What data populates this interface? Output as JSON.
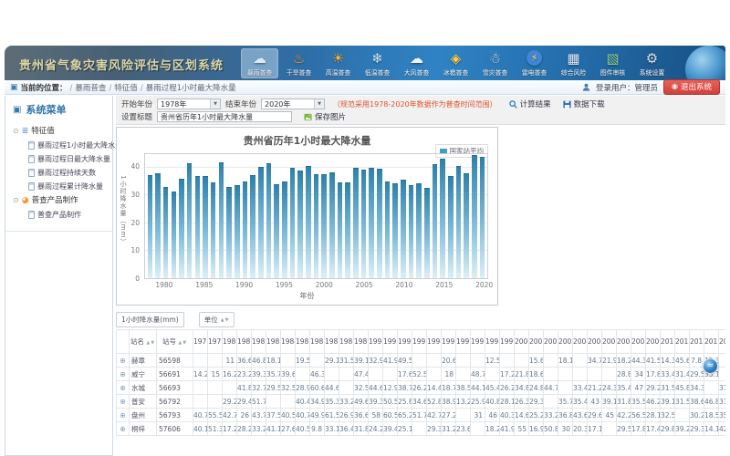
{
  "header": {
    "title": "贵州省气象灾害风险评估与区划系统",
    "nav_items": [
      {
        "key": "rainstorm",
        "label": "暴雨普查",
        "icon": "rain-cloud",
        "active": true
      },
      {
        "key": "drought",
        "label": "干旱普查",
        "icon": "heat-waves",
        "active": false
      },
      {
        "key": "high-temp",
        "label": "高温普查",
        "icon": "sun",
        "active": false
      },
      {
        "key": "low-temp",
        "label": "低温普查",
        "icon": "snowflake",
        "active": false
      },
      {
        "key": "wind",
        "label": "大风普查",
        "icon": "wind-cloud",
        "active": false
      },
      {
        "key": "hail",
        "label": "冰雹普查",
        "icon": "hail-shield",
        "active": false
      },
      {
        "key": "snow",
        "label": "雪灾普查",
        "icon": "snow-cloud",
        "active": false
      },
      {
        "key": "lightning",
        "label": "雷电普查",
        "icon": "lightning",
        "active": false
      },
      {
        "key": "composite-risk",
        "label": "综合风险",
        "icon": "calculator",
        "active": false
      },
      {
        "key": "map-review",
        "label": "图件审核",
        "icon": "map",
        "active": false
      },
      {
        "key": "settings",
        "label": "系统设置",
        "icon": "wrench",
        "active": false
      }
    ]
  },
  "breadcrumb": {
    "prefix": "当前的位置：",
    "items": [
      "暴雨普查",
      "特征值",
      "暴雨过程1小时最大降水量"
    ]
  },
  "user": {
    "label": "登录用户：管理员",
    "logout_label": "退出系统"
  },
  "sidebar": {
    "title": "系统菜单",
    "groups": [
      {
        "label": "特征值",
        "icon": "list",
        "children": [
          {
            "label": "暴雨过程1小时最大降水量"
          },
          {
            "label": "暴雨过程日最大降水量"
          },
          {
            "label": "暴雨过程持续天数"
          },
          {
            "label": "暴雨过程累计降水量"
          }
        ]
      },
      {
        "label": "普查产品制作",
        "icon": "pie",
        "children": [
          {
            "label": "普查产品制作"
          }
        ]
      }
    ]
  },
  "query": {
    "start_label": "开始年份",
    "start_value": "1978年",
    "end_label": "结束年份",
    "end_value": "2020年",
    "hint": "（规范采用1978-2020年数据作为普查时间范围）",
    "calc_label": "计算结果",
    "download_label": "数据下载",
    "title_label": "设置标题",
    "title_value": "贵州省历年1小时最大降水量",
    "save_image_label": "保存图片"
  },
  "chart_data": {
    "type": "bar",
    "title": "贵州省历年1小时最大降水量",
    "legend": [
      "国家站平均"
    ],
    "xlabel": "年份",
    "ylabel": "1小时降水量（mm）",
    "ylim": [
      0,
      45
    ],
    "yticks": [
      0,
      10,
      20,
      30,
      40
    ],
    "xticks": [
      1980,
      1985,
      1990,
      1995,
      2000,
      2005,
      2010,
      2015,
      2020
    ],
    "x": [
      1978,
      1979,
      1980,
      1981,
      1982,
      1983,
      1984,
      1985,
      1986,
      1987,
      1988,
      1989,
      1990,
      1991,
      1992,
      1993,
      1994,
      1995,
      1996,
      1997,
      1998,
      1999,
      2000,
      2001,
      2002,
      2003,
      2004,
      2005,
      2006,
      2007,
      2008,
      2009,
      2010,
      2011,
      2012,
      2013,
      2014,
      2015,
      2016,
      2017,
      2018,
      2019,
      2020
    ],
    "values": [
      37.5,
      38.2,
      33.2,
      31.5,
      36.0,
      41.7,
      37.0,
      37.0,
      34.8,
      41.9,
      33.2,
      33.6,
      35.1,
      37.5,
      40.5,
      41.6,
      34.2,
      35.2,
      40.0,
      38.9,
      40.8,
      37.6,
      37.7,
      38.5,
      34.6,
      34.6,
      40.1,
      39.5,
      40.1,
      39.8,
      35.1,
      34.4,
      35.8,
      33.9,
      34.4,
      32.9,
      41.5,
      43.2,
      37.2,
      40.6,
      38.1,
      44.8,
      43.9
    ]
  },
  "table": {
    "filter_box": "1小时降水量(mm)",
    "unit_filter": "单位",
    "col_name": "站名",
    "col_id": "站号",
    "years": [
      1978,
      1979,
      1980,
      1981,
      1982,
      1983,
      1984,
      1985,
      1986,
      1987,
      1988,
      1989,
      1990,
      1991,
      1992,
      1993,
      1994,
      1995,
      1996,
      1997,
      1998,
      1999,
      2000,
      2001,
      2002,
      2003,
      2004,
      2005,
      2006,
      2007,
      2008,
      2009,
      2010,
      2011,
      2012,
      2013,
      2014
    ],
    "rows": [
      {
        "name": "赫章",
        "id": "56598",
        "values": [
          "",
          "",
          "11",
          "36.6",
          "46.8",
          "18.1",
          "",
          "19.5",
          "",
          "29.1",
          "31.5",
          "39.1",
          "32.9",
          "41.9",
          "49.5",
          "",
          "",
          "20.6",
          "",
          "",
          "12.5",
          "",
          "",
          "15.6",
          "",
          "18.1",
          "",
          "34.7",
          "21.9",
          "18.2",
          "44.3",
          "41.5",
          "14.3",
          "45.6",
          "7.8",
          "15.3",
          ""
        ]
      },
      {
        "name": "威宁",
        "id": "56691",
        "values": [
          "14.2",
          "15",
          "16.2",
          "23.2",
          "39.3",
          "35.7",
          "39.6",
          "",
          "46.3",
          "",
          "",
          "47.4",
          "",
          "",
          "17.6",
          "52.5",
          "",
          "18",
          "",
          "48.7",
          "",
          "17.2",
          "21.8",
          "18.6",
          "",
          "",
          "",
          "",
          "",
          "28.8",
          "34",
          "17.8",
          "33.4",
          "31.4",
          "29.5",
          "35.1",
          ""
        ]
      },
      {
        "name": "水城",
        "id": "56693",
        "values": [
          "",
          "",
          "",
          "41.8",
          "32.7",
          "29.5",
          "32.5",
          "28.9",
          "60.6",
          "44.6",
          "",
          "32.5",
          "44.6",
          "12.9",
          "38.7",
          "26.2",
          "14.4",
          "18.7",
          "38.5",
          "44.1",
          "45.4",
          "26.2",
          "34.8",
          "24.8",
          "44.7",
          "",
          "33.4",
          "21.2",
          "24.3",
          "35.4",
          "47",
          "29.2",
          "31.5",
          "45.8",
          "34.3",
          "",
          "31.9"
        ]
      },
      {
        "name": "普安",
        "id": "56792",
        "values": [
          "",
          "",
          "29.2",
          "29.4",
          "51.7",
          "",
          "",
          "40.4",
          "34.9",
          "35.3",
          "33.2",
          "49.6",
          "39.3",
          "50.5",
          "25.8",
          "34.6",
          "52.8",
          "38.9",
          "13.2",
          "25.9",
          "40.8",
          "28.1",
          "26.3",
          "29.3",
          "",
          "35.7",
          "35.4",
          "43",
          "39.1",
          "31.8",
          "35.5",
          "46.2",
          "39.1",
          "31.5",
          "38.6",
          "46.8",
          "31.1"
        ]
      },
      {
        "name": "盘州",
        "id": "56793",
        "values": [
          "40.7",
          "55.5",
          "42.7",
          "26",
          "43.7",
          "37.5",
          "40.5",
          "40.7",
          "49.9",
          "61.5",
          "26.9",
          "36.6",
          "58",
          "60.5",
          "65.2",
          "51.7",
          "42.7",
          "27.2",
          "",
          "31",
          "46",
          "40.3",
          "14.6",
          "25.2",
          "33.2",
          "36.8",
          "43.6",
          "29.6",
          "45",
          "42.2",
          "56.5",
          "28.1",
          "32.5",
          "",
          "30.2",
          "18.5",
          "35.8"
        ]
      },
      {
        "name": "桐梓",
        "id": "57606",
        "values": [
          "40.1",
          "51.3",
          "17.2",
          "28.2",
          "33.2",
          "41.1",
          "27.6",
          "40.5",
          "9.8",
          "33.1",
          "36.4",
          "31.8",
          "24.2",
          "39.4",
          "25.1",
          "",
          "29.3",
          "31.2",
          "23.6",
          "",
          "18.2",
          "41.9",
          "55",
          "16.9",
          "50.8",
          "30",
          "20.3",
          "17.1",
          "",
          "29.5",
          "17.8",
          "17.4",
          "29.8",
          "39.2",
          "29.3",
          "14.1",
          "42.1"
        ]
      }
    ]
  },
  "colors": {
    "accent": "#2f83c4",
    "bar_top": "#2e81ab",
    "bar_bottom": "#ddeff8",
    "legend_swatch": "#3d9ec6",
    "logout_red": "#d0403a",
    "hint_red": "#e0512d"
  }
}
